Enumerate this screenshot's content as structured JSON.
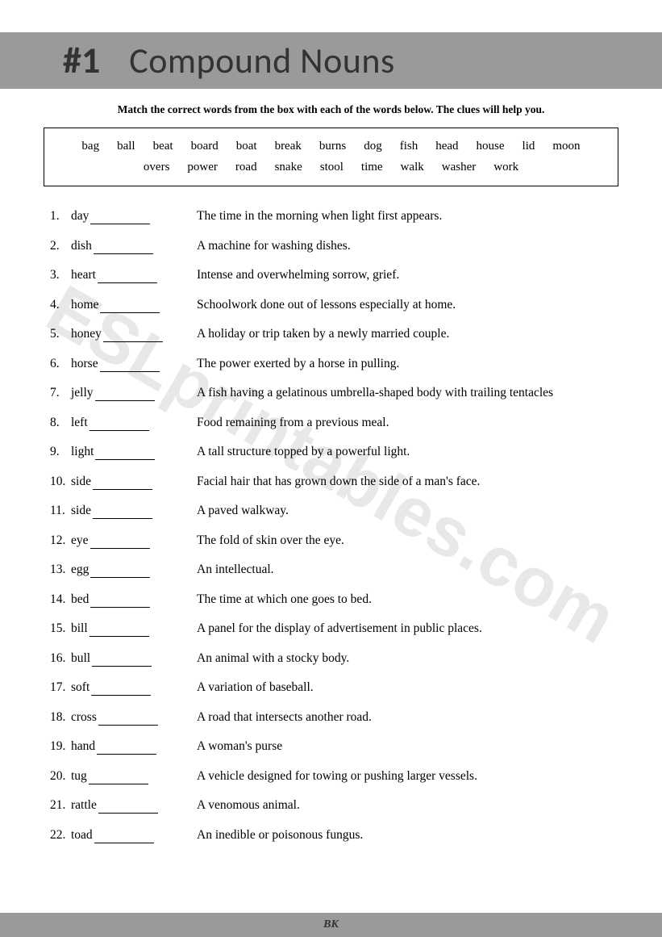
{
  "header": {
    "number": "#1",
    "title": "Compound Nouns"
  },
  "instructions": "Match the correct words from the box with each of the words below. The clues will help you.",
  "word_box": [
    "bag",
    "ball",
    "beat",
    "board",
    "boat",
    "break",
    "burns",
    "dog",
    "fish",
    "head",
    "house",
    "lid",
    "moon",
    "overs",
    "power",
    "road",
    "snake",
    "stool",
    "time",
    "walk",
    "washer",
    "work"
  ],
  "items": [
    {
      "n": "1.",
      "word": "day",
      "clue": "The time in the morning when light first appears."
    },
    {
      "n": "2.",
      "word": "dish",
      "clue": "A machine for washing dishes."
    },
    {
      "n": "3.",
      "word": "heart",
      "clue": "Intense and overwhelming sorrow, grief."
    },
    {
      "n": "4.",
      "word": "home",
      "clue": "Schoolwork done out of lessons especially at home."
    },
    {
      "n": "5.",
      "word": "honey",
      "clue": "A holiday or trip taken by a newly married couple."
    },
    {
      "n": "6.",
      "word": "horse",
      "clue": "The power exerted by a horse in pulling."
    },
    {
      "n": "7.",
      "word": "jelly",
      "clue": "A fish having a gelatinous umbrella-shaped body with trailing tentacles"
    },
    {
      "n": "8.",
      "word": "left",
      "clue": "Food remaining from a previous meal."
    },
    {
      "n": "9.",
      "word": "light",
      "clue": "A tall structure topped by a powerful light."
    },
    {
      "n": "10.",
      "word": "side",
      "clue": "Facial hair that has grown down the side of a man's face."
    },
    {
      "n": "11.",
      "word": "side",
      "clue": "A paved walkway."
    },
    {
      "n": "12.",
      "word": "eye",
      "clue": "The fold of skin over the eye."
    },
    {
      "n": "13.",
      "word": "egg",
      "clue": "An intellectual."
    },
    {
      "n": "14.",
      "word": "bed",
      "clue": "The time at which one goes to bed."
    },
    {
      "n": "15.",
      "word": "bill",
      "clue": "A panel for the display of advertisement in public places."
    },
    {
      "n": "16.",
      "word": "bull",
      "clue": "An animal with a stocky body."
    },
    {
      "n": "17.",
      "word": "soft",
      "clue": "A variation of baseball."
    },
    {
      "n": "18.",
      "word": "cross",
      "clue": "A road that intersects another road."
    },
    {
      "n": "19.",
      "word": "hand",
      "clue": "A woman's purse"
    },
    {
      "n": "20.",
      "word": "tug",
      "clue": "A vehicle designed for towing or pushing larger vessels."
    },
    {
      "n": "21.",
      "word": "rattle",
      "clue": "A venomous animal."
    },
    {
      "n": "22.",
      "word": "toad",
      "clue": "An inedible or poisonous fungus."
    }
  ],
  "footer": "BK",
  "watermark": "ESLprintables.com"
}
